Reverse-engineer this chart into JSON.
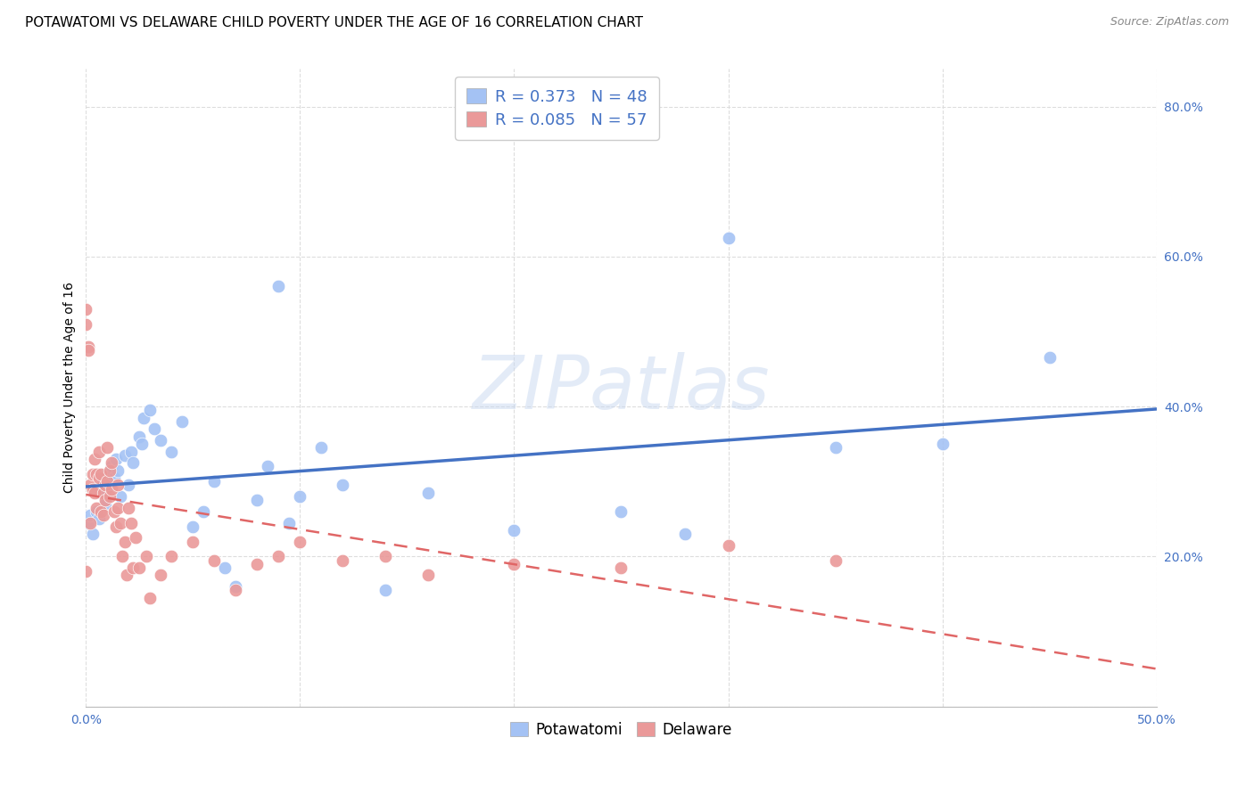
{
  "title": "POTAWATOMI VS DELAWARE CHILD POVERTY UNDER THE AGE OF 16 CORRELATION CHART",
  "source": "Source: ZipAtlas.com",
  "ylabel_label": "Child Poverty Under the Age of 16",
  "xlim": [
    0.0,
    0.5
  ],
  "ylim": [
    0.0,
    0.85
  ],
  "xticks": [
    0.0,
    0.1,
    0.2,
    0.3,
    0.4,
    0.5
  ],
  "xtick_labels": [
    "0.0%",
    "",
    "",
    "",
    "",
    "50.0%"
  ],
  "yticks": [
    0.0,
    0.2,
    0.4,
    0.6,
    0.8
  ],
  "ytick_labels": [
    "",
    "20.0%",
    "40.0%",
    "60.0%",
    "80.0%"
  ],
  "potawatomi_color": "#a4c2f4",
  "delaware_color": "#ea9999",
  "potawatomi_line_color": "#4472c4",
  "delaware_line_color": "#e06666",
  "legend_r1": "R = 0.373",
  "legend_n1": "N = 48",
  "legend_r2": "R = 0.085",
  "legend_n2": "N = 57",
  "watermark_text": "ZIPatlas",
  "potawatomi_x": [
    0.001,
    0.002,
    0.003,
    0.005,
    0.006,
    0.007,
    0.008,
    0.009,
    0.01,
    0.011,
    0.012,
    0.013,
    0.014,
    0.015,
    0.016,
    0.018,
    0.02,
    0.021,
    0.022,
    0.025,
    0.026,
    0.027,
    0.03,
    0.032,
    0.035,
    0.04,
    0.045,
    0.05,
    0.055,
    0.06,
    0.065,
    0.07,
    0.08,
    0.085,
    0.09,
    0.095,
    0.1,
    0.11,
    0.12,
    0.14,
    0.16,
    0.2,
    0.25,
    0.28,
    0.3,
    0.35,
    0.4,
    0.45
  ],
  "potawatomi_y": [
    0.245,
    0.255,
    0.23,
    0.26,
    0.25,
    0.285,
    0.3,
    0.27,
    0.31,
    0.295,
    0.32,
    0.305,
    0.33,
    0.315,
    0.28,
    0.335,
    0.295,
    0.34,
    0.325,
    0.36,
    0.35,
    0.385,
    0.395,
    0.37,
    0.355,
    0.34,
    0.38,
    0.24,
    0.26,
    0.3,
    0.185,
    0.16,
    0.275,
    0.32,
    0.56,
    0.245,
    0.28,
    0.345,
    0.295,
    0.155,
    0.285,
    0.235,
    0.26,
    0.23,
    0.625,
    0.345,
    0.35,
    0.465
  ],
  "delaware_x": [
    0.0,
    0.0,
    0.0,
    0.001,
    0.001,
    0.002,
    0.002,
    0.003,
    0.003,
    0.004,
    0.004,
    0.005,
    0.005,
    0.006,
    0.006,
    0.007,
    0.007,
    0.008,
    0.008,
    0.009,
    0.009,
    0.01,
    0.01,
    0.011,
    0.011,
    0.012,
    0.012,
    0.013,
    0.014,
    0.015,
    0.015,
    0.016,
    0.017,
    0.018,
    0.019,
    0.02,
    0.021,
    0.022,
    0.023,
    0.025,
    0.028,
    0.03,
    0.035,
    0.04,
    0.05,
    0.06,
    0.07,
    0.08,
    0.09,
    0.1,
    0.12,
    0.14,
    0.16,
    0.2,
    0.25,
    0.3,
    0.35
  ],
  "delaware_y": [
    0.53,
    0.51,
    0.18,
    0.48,
    0.475,
    0.295,
    0.245,
    0.31,
    0.29,
    0.33,
    0.285,
    0.31,
    0.265,
    0.34,
    0.305,
    0.31,
    0.26,
    0.285,
    0.255,
    0.295,
    0.275,
    0.345,
    0.3,
    0.315,
    0.28,
    0.325,
    0.29,
    0.26,
    0.24,
    0.265,
    0.295,
    0.245,
    0.2,
    0.22,
    0.175,
    0.265,
    0.245,
    0.185,
    0.225,
    0.185,
    0.2,
    0.145,
    0.175,
    0.2,
    0.22,
    0.195,
    0.155,
    0.19,
    0.2,
    0.22,
    0.195,
    0.2,
    0.175,
    0.19,
    0.185,
    0.215,
    0.195
  ],
  "background_color": "#ffffff",
  "grid_color": "#dddddd",
  "axis_color": "#4472c4",
  "title_fontsize": 11,
  "axis_label_fontsize": 10,
  "tick_fontsize": 10,
  "source_fontsize": 9
}
